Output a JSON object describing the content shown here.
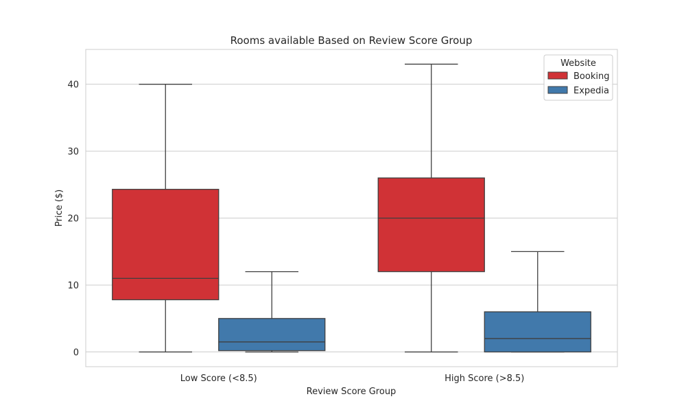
{
  "chart_data": {
    "type": "box",
    "title": "Rooms available Based on Review Score Group",
    "xlabel": "Review Score Group",
    "ylabel": "Price ($)",
    "categories": [
      "Low Score (<8.5)",
      "High Score (>8.5)"
    ],
    "ylim": [
      -2.2,
      45.2
    ],
    "yticks": [
      0,
      10,
      20,
      30,
      40
    ],
    "grid": true,
    "legend": {
      "title": "Website",
      "placement": "top-right"
    },
    "series": [
      {
        "name": "Booking",
        "color": "#d03236",
        "boxes": [
          {
            "category": "Low Score (<8.5)",
            "whisker_low": 0,
            "q1": 7.8,
            "median": 11,
            "q3": 24.3,
            "whisker_high": 40
          },
          {
            "category": "High Score (>8.5)",
            "whisker_low": 0,
            "q1": 12,
            "median": 20,
            "q3": 26,
            "whisker_high": 43
          }
        ]
      },
      {
        "name": "Expedia",
        "color": "#4179ab",
        "boxes": [
          {
            "category": "Low Score (<8.5)",
            "whisker_low": 0,
            "q1": 0.2,
            "median": 1.5,
            "q3": 5,
            "whisker_high": 12
          },
          {
            "category": "High Score (>8.5)",
            "whisker_low": 0,
            "q1": 0,
            "median": 2,
            "q3": 6,
            "whisker_high": 15
          }
        ]
      }
    ]
  }
}
